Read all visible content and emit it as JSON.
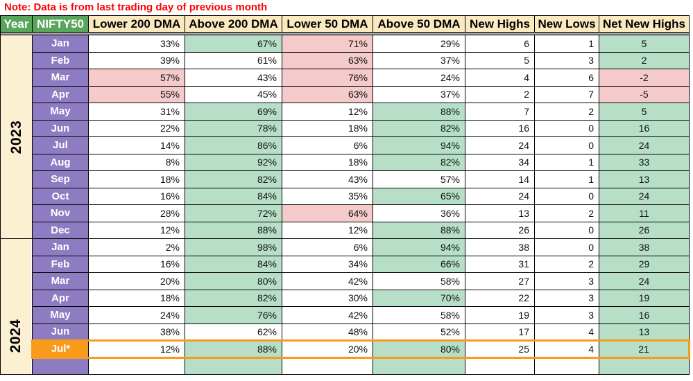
{
  "note": "Note: Data is from last trading day of previous month",
  "columns": [
    "Year",
    "NIFTY50",
    "Lower 200 DMA",
    "Above 200 DMA",
    "Lower 50 DMA",
    "Above 50 DMA",
    "New Highs",
    "New Lows",
    "Net New Highs"
  ],
  "colors": {
    "note_red": "#FF0000",
    "header_green": "#58A55C",
    "header_cream": "#FBE9C0",
    "year_cream": "#FCF0D2",
    "month_purple": "#8E7CC3",
    "cell_green": "#B7DFC8",
    "cell_pink": "#F4CACA",
    "highlight_orange": "#F89B1C",
    "separator_gray": "#A6A6A6",
    "grid_black": "#000000"
  },
  "sections": [
    {
      "year": "2023",
      "year_label_position": "center",
      "rows": [
        {
          "month": "Jan",
          "values": [
            "33%",
            "67%",
            "71%",
            "29%",
            "6",
            "1",
            "5"
          ],
          "bg": [
            "white",
            "green",
            "pink",
            "white",
            "white",
            "white",
            "green"
          ]
        },
        {
          "month": "Feb",
          "values": [
            "39%",
            "61%",
            "63%",
            "37%",
            "5",
            "3",
            "2"
          ],
          "bg": [
            "white",
            "white",
            "pink",
            "white",
            "white",
            "white",
            "green"
          ]
        },
        {
          "month": "Mar",
          "values": [
            "57%",
            "43%",
            "76%",
            "24%",
            "4",
            "6",
            "-2"
          ],
          "bg": [
            "pink",
            "white",
            "pink",
            "white",
            "white",
            "white",
            "pink"
          ]
        },
        {
          "month": "Apr",
          "values": [
            "55%",
            "45%",
            "63%",
            "37%",
            "2",
            "7",
            "-5"
          ],
          "bg": [
            "pink",
            "white",
            "pink",
            "white",
            "white",
            "white",
            "pink"
          ]
        },
        {
          "month": "May",
          "values": [
            "31%",
            "69%",
            "12%",
            "88%",
            "7",
            "2",
            "5"
          ],
          "bg": [
            "white",
            "green",
            "white",
            "green",
            "white",
            "white",
            "green"
          ]
        },
        {
          "month": "Jun",
          "values": [
            "22%",
            "78%",
            "18%",
            "82%",
            "16",
            "0",
            "16"
          ],
          "bg": [
            "white",
            "green",
            "white",
            "green",
            "white",
            "white",
            "green"
          ]
        },
        {
          "month": "Jul",
          "values": [
            "14%",
            "86%",
            "6%",
            "94%",
            "24",
            "0",
            "24"
          ],
          "bg": [
            "white",
            "green",
            "white",
            "green",
            "white",
            "white",
            "green"
          ]
        },
        {
          "month": "Aug",
          "values": [
            "8%",
            "92%",
            "18%",
            "82%",
            "34",
            "1",
            "33"
          ],
          "bg": [
            "white",
            "green",
            "white",
            "green",
            "white",
            "white",
            "green"
          ]
        },
        {
          "month": "Sep",
          "values": [
            "18%",
            "82%",
            "43%",
            "57%",
            "14",
            "1",
            "13"
          ],
          "bg": [
            "white",
            "green",
            "white",
            "white",
            "white",
            "white",
            "green"
          ]
        },
        {
          "month": "Oct",
          "values": [
            "16%",
            "84%",
            "35%",
            "65%",
            "24",
            "0",
            "24"
          ],
          "bg": [
            "white",
            "green",
            "white",
            "green",
            "white",
            "white",
            "green"
          ]
        },
        {
          "month": "Nov",
          "values": [
            "28%",
            "72%",
            "64%",
            "36%",
            "13",
            "2",
            "11"
          ],
          "bg": [
            "white",
            "green",
            "pink",
            "white",
            "white",
            "white",
            "green"
          ]
        },
        {
          "month": "Dec",
          "values": [
            "12%",
            "88%",
            "12%",
            "88%",
            "26",
            "0",
            "26"
          ],
          "bg": [
            "white",
            "green",
            "white",
            "green",
            "white",
            "white",
            "green"
          ]
        }
      ]
    },
    {
      "year": "2024",
      "year_label_position": "low",
      "rows": [
        {
          "month": "Jan",
          "values": [
            "2%",
            "98%",
            "6%",
            "94%",
            "38",
            "0",
            "38"
          ],
          "bg": [
            "white",
            "green",
            "white",
            "green",
            "white",
            "white",
            "green"
          ]
        },
        {
          "month": "Feb",
          "values": [
            "16%",
            "84%",
            "34%",
            "66%",
            "31",
            "2",
            "29"
          ],
          "bg": [
            "white",
            "green",
            "white",
            "green",
            "white",
            "white",
            "green"
          ]
        },
        {
          "month": "Mar",
          "values": [
            "20%",
            "80%",
            "42%",
            "58%",
            "27",
            "3",
            "24"
          ],
          "bg": [
            "white",
            "green",
            "white",
            "white",
            "white",
            "white",
            "green"
          ]
        },
        {
          "month": "Apr",
          "values": [
            "18%",
            "82%",
            "30%",
            "70%",
            "22",
            "3",
            "19"
          ],
          "bg": [
            "white",
            "green",
            "white",
            "green",
            "white",
            "white",
            "green"
          ]
        },
        {
          "month": "May",
          "values": [
            "24%",
            "76%",
            "42%",
            "58%",
            "19",
            "3",
            "16"
          ],
          "bg": [
            "white",
            "green",
            "white",
            "white",
            "white",
            "white",
            "green"
          ]
        },
        {
          "month": "Jun",
          "values": [
            "38%",
            "62%",
            "48%",
            "52%",
            "17",
            "4",
            "13"
          ],
          "bg": [
            "white",
            "white",
            "white",
            "white",
            "white",
            "white",
            "green"
          ]
        },
        {
          "month": "Jul*",
          "values": [
            "12%",
            "88%",
            "20%",
            "80%",
            "25",
            "4",
            "21"
          ],
          "bg": [
            "white",
            "green",
            "white",
            "green",
            "white",
            "white",
            "green"
          ],
          "month_orange": true,
          "highlight": true
        },
        {
          "month": "",
          "values": [
            "",
            "",
            "",
            "",
            "",
            "",
            ""
          ],
          "bg": [
            "white",
            "green",
            "white",
            "green",
            "white",
            "white",
            "green"
          ],
          "partial": true
        }
      ]
    }
  ]
}
